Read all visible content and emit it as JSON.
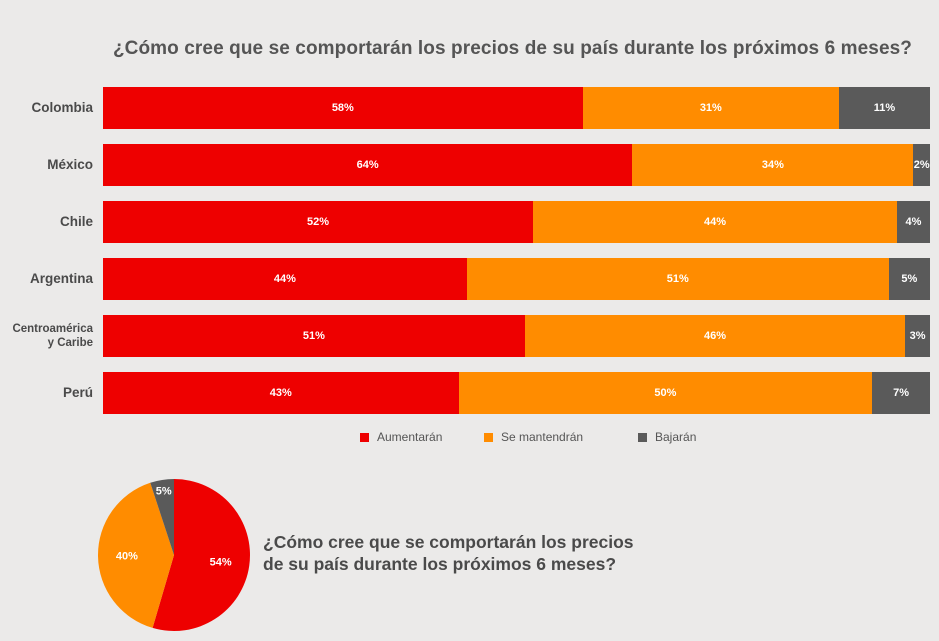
{
  "title": "¿Cómo cree que se comportarán los precios de su país durante los próximos 6 meses?",
  "title2_line1": "¿Cómo cree que se comportarán los precios",
  "title2_line2": "de su país durante los próximos 6 meses?",
  "colors": {
    "aumentaran": "#ee0000",
    "mantendran": "#ff8c00",
    "bajaran": "#5a5a5a",
    "background": "#ebeae9"
  },
  "chart_data": [
    {
      "type": "bar",
      "orientation": "horizontal",
      "stacked": "100%",
      "title": "¿Cómo cree que se comportarán los precios de su país durante los próximos 6 meses?",
      "categories": [
        "Colombia",
        "México",
        "Chile",
        "Argentina",
        "Centroamérica y Caribe",
        "Perú"
      ],
      "category_lines": [
        [
          "Colombia"
        ],
        [
          "México"
        ],
        [
          "Chile"
        ],
        [
          "Argentina"
        ],
        [
          "Centroamérica",
          "y Caribe"
        ],
        [
          "Perú"
        ]
      ],
      "series": [
        {
          "name": "Aumentarán",
          "color": "#ee0000",
          "values": [
            58,
            64,
            52,
            44,
            51,
            43
          ],
          "labels": [
            "58%",
            "64%",
            "52%",
            "44%",
            "51%",
            "43%"
          ]
        },
        {
          "name": "Se mantendrán",
          "color": "#ff8c00",
          "values": [
            31,
            34,
            44,
            51,
            46,
            50
          ],
          "labels": [
            "31%",
            "34%",
            "44%",
            "51%",
            "46%",
            "50%"
          ]
        },
        {
          "name": "Bajarán",
          "color": "#5a5a5a",
          "values": [
            11,
            2,
            4,
            5,
            3,
            7
          ],
          "labels": [
            "11%",
            "2%",
            "4%",
            "5%",
            "3%",
            "7%"
          ]
        }
      ],
      "legend": "bottom",
      "grid": false
    },
    {
      "type": "pie",
      "title": "¿Cómo cree que se comportarán los precios de su país durante los próximos 6 meses?",
      "slices": [
        {
          "name": "Aumentarán",
          "value": 54,
          "label": "54%",
          "color": "#ee0000"
        },
        {
          "name": "Se mantendrán",
          "value": 40,
          "label": "40%",
          "color": "#ff8c00"
        },
        {
          "name": "Bajarán",
          "value": 5,
          "label": "5%",
          "color": "#5a5a5a"
        }
      ]
    }
  ]
}
